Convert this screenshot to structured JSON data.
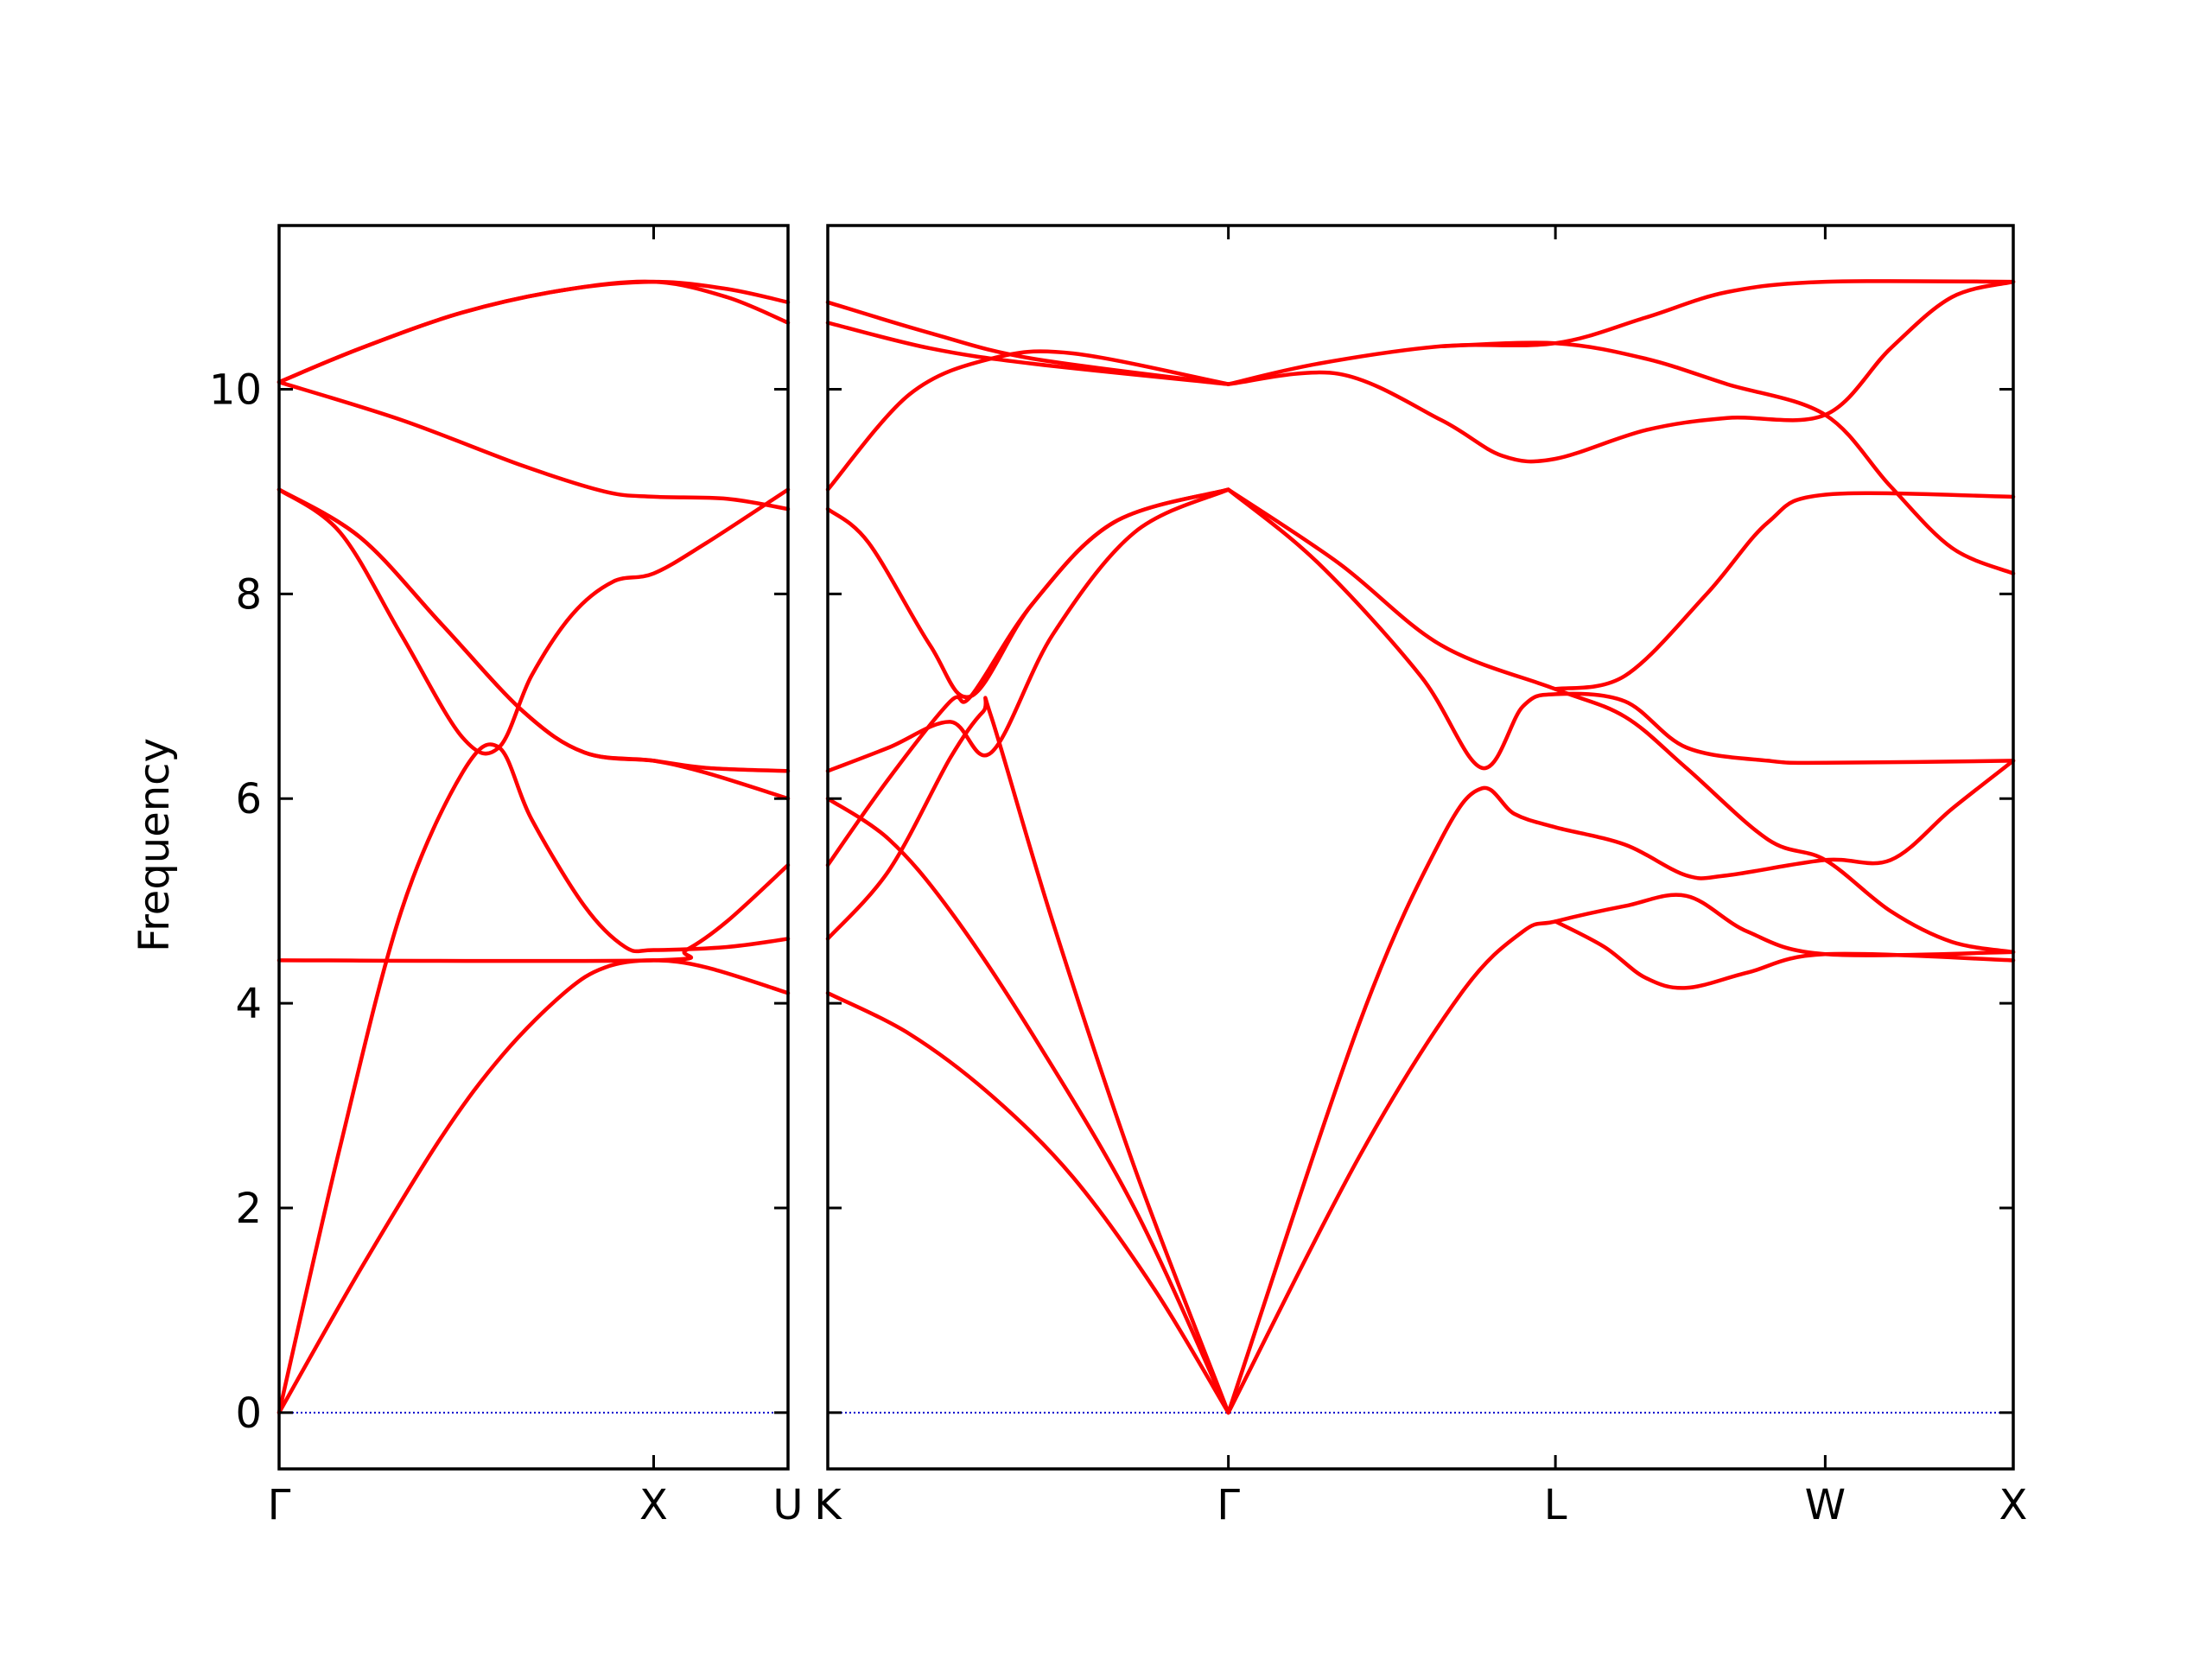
{
  "chart_data": {
    "type": "line",
    "ylabel": "Frequency",
    "ylim": [
      -0.55,
      11.6
    ],
    "yticks": [
      0,
      2,
      4,
      6,
      8,
      10
    ],
    "ytick_labels": [
      "0",
      "2",
      "4",
      "6",
      "8",
      "10"
    ],
    "zero_line": {
      "y": 0,
      "style": "dotted",
      "color": "#0000cc"
    },
    "line_color": "#ff0000",
    "panels": [
      {
        "xlim": [
          0,
          1.25
        ],
        "xticks": [
          0,
          0.92,
          1.25
        ],
        "xtick_labels": [
          "Γ",
          "X",
          "U"
        ],
        "series": [
          {
            "points": [
              [
                0,
                0
              ],
              [
                0.2,
                1.4
              ],
              [
                0.4,
                2.7
              ],
              [
                0.55,
                3.5
              ],
              [
                0.7,
                4.1
              ],
              [
                0.8,
                4.35
              ],
              [
                0.92,
                4.42
              ],
              [
                1.05,
                4.35
              ],
              [
                1.25,
                4.1
              ]
            ]
          },
          {
            "points": [
              [
                0,
                0
              ],
              [
                0.15,
                2.6
              ],
              [
                0.3,
                4.9
              ],
              [
                0.45,
                6.25
              ],
              [
                0.54,
                6.5
              ],
              [
                0.62,
                5.8
              ],
              [
                0.75,
                4.95
              ],
              [
                0.85,
                4.55
              ],
              [
                0.92,
                4.52
              ],
              [
                1.1,
                4.55
              ],
              [
                1.25,
                4.63
              ]
            ]
          },
          {
            "points": [
              [
                0,
                9.02
              ],
              [
                0.15,
                8.6
              ],
              [
                0.3,
                7.6
              ],
              [
                0.45,
                6.6
              ],
              [
                0.54,
                6.5
              ],
              [
                0.62,
                7.2
              ],
              [
                0.72,
                7.8
              ],
              [
                0.82,
                8.12
              ],
              [
                0.92,
                8.2
              ],
              [
                1.05,
                8.5
              ],
              [
                1.25,
                9.02
              ]
            ]
          },
          {
            "points": [
              [
                0,
                9.02
              ],
              [
                0.2,
                8.55
              ],
              [
                0.4,
                7.7
              ],
              [
                0.6,
                6.85
              ],
              [
                0.75,
                6.45
              ],
              [
                0.92,
                6.37
              ],
              [
                1.05,
                6.3
              ],
              [
                1.25,
                6.27
              ]
            ]
          },
          {
            "points": [
              [
                0,
                9.02
              ],
              [
                0.2,
                8.55
              ],
              [
                0.4,
                7.7
              ],
              [
                0.6,
                6.85
              ],
              [
                0.75,
                6.45
              ],
              [
                0.92,
                6.37
              ],
              [
                1.05,
                6.25
              ],
              [
                1.25,
                6.0
              ]
            ]
          },
          {
            "points": [
              [
                0,
                4.42
              ],
              [
                0.92,
                4.42
              ],
              [
                1.0,
                4.52
              ],
              [
                1.1,
                4.8
              ],
              [
                1.25,
                5.35
              ]
            ]
          },
          {
            "points": [
              [
                0,
                10.07
              ],
              [
                0.3,
                9.7
              ],
              [
                0.6,
                9.25
              ],
              [
                0.8,
                9.0
              ],
              [
                0.92,
                8.95
              ],
              [
                1.1,
                8.93
              ],
              [
                1.25,
                8.83
              ]
            ]
          },
          {
            "points": [
              [
                0,
                10.07
              ],
              [
                0.2,
                10.4
              ],
              [
                0.45,
                10.75
              ],
              [
                0.7,
                10.97
              ],
              [
                0.92,
                11.05
              ],
              [
                1.1,
                10.98
              ],
              [
                1.25,
                10.85
              ]
            ]
          },
          {
            "points": [
              [
                0,
                10.07
              ],
              [
                0.2,
                10.4
              ],
              [
                0.45,
                10.75
              ],
              [
                0.7,
                10.97
              ],
              [
                0.92,
                11.05
              ],
              [
                1.1,
                10.9
              ],
              [
                1.25,
                10.65
              ]
            ]
          }
        ]
      },
      {
        "xlim": [
          0,
          2.9
        ],
        "xticks": [
          0,
          0.98,
          1.78,
          2.44,
          2.9
        ],
        "xtick_labels": [
          "K",
          "Γ",
          "L",
          "W",
          "X"
        ],
        "series": [
          {
            "points": [
              [
                0,
                4.1
              ],
              [
                0.2,
                3.7
              ],
              [
                0.4,
                3.1
              ],
              [
                0.6,
                2.3
              ],
              [
                0.8,
                1.2
              ],
              [
                0.98,
                0
              ]
            ]
          },
          {
            "points": [
              [
                0,
                6.0
              ],
              [
                0.15,
                5.6
              ],
              [
                0.3,
                4.9
              ],
              [
                0.5,
                3.7
              ],
              [
                0.75,
                2.0
              ],
              [
                0.98,
                0
              ]
            ]
          },
          {
            "points": [
              [
                0,
                4.63
              ],
              [
                0.15,
                5.3
              ],
              [
                0.3,
                6.4
              ],
              [
                0.38,
                6.85
              ],
              [
                0.4,
                6.8
              ],
              [
                0.55,
                4.8
              ],
              [
                0.75,
                2.4
              ],
              [
                0.98,
                0
              ]
            ]
          },
          {
            "points": [
              [
                0,
                5.35
              ],
              [
                0.15,
                6.2
              ],
              [
                0.3,
                6.95
              ],
              [
                0.35,
                7.0
              ],
              [
                0.5,
                7.9
              ],
              [
                0.7,
                8.7
              ],
              [
                0.98,
                9.02
              ]
            ]
          },
          {
            "points": [
              [
                0,
                6.27
              ],
              [
                0.15,
                6.5
              ],
              [
                0.3,
                6.75
              ],
              [
                0.4,
                6.45
              ],
              [
                0.55,
                7.6
              ],
              [
                0.75,
                8.6
              ],
              [
                0.98,
                9.02
              ]
            ]
          },
          {
            "points": [
              [
                0,
                8.83
              ],
              [
                0.1,
                8.5
              ],
              [
                0.25,
                7.5
              ],
              [
                0.35,
                7.0
              ],
              [
                0.5,
                7.9
              ],
              [
                0.7,
                8.7
              ],
              [
                0.98,
                9.02
              ]
            ]
          },
          {
            "points": [
              [
                0,
                9.02
              ],
              [
                0.2,
                9.95
              ],
              [
                0.4,
                10.3
              ],
              [
                0.6,
                10.35
              ],
              [
                0.98,
                10.05
              ]
            ]
          },
          {
            "points": [
              [
                0,
                10.65
              ],
              [
                0.25,
                10.4
              ],
              [
                0.5,
                10.25
              ],
              [
                0.98,
                10.05
              ]
            ]
          },
          {
            "points": [
              [
                0,
                10.85
              ],
              [
                0.25,
                10.55
              ],
              [
                0.5,
                10.3
              ],
              [
                0.98,
                10.05
              ]
            ]
          },
          {
            "points": [
              [
                0.98,
                0
              ],
              [
                1.3,
                3.8
              ],
              [
                1.5,
                5.6
              ],
              [
                1.6,
                6.1
              ],
              [
                1.68,
                5.85
              ],
              [
                1.78,
                5.72
              ],
              [
                1.95,
                5.55
              ],
              [
                2.1,
                5.25
              ],
              [
                2.2,
                5.25
              ],
              [
                2.44,
                5.4
              ],
              [
                2.6,
                5.4
              ],
              [
                2.75,
                5.9
              ],
              [
                2.9,
                6.37
              ]
            ]
          },
          {
            "points": [
              [
                0.98,
                0
              ],
              [
                1.3,
                2.5
              ],
              [
                1.55,
                4.1
              ],
              [
                1.7,
                4.7
              ],
              [
                1.78,
                4.8
              ],
              [
                1.95,
                4.95
              ],
              [
                2.1,
                5.05
              ],
              [
                2.25,
                4.7
              ],
              [
                2.44,
                4.48
              ],
              [
                2.9,
                4.5
              ]
            ]
          },
          {
            "points": [
              [
                1.78,
                4.8
              ],
              [
                1.9,
                4.55
              ],
              [
                2.0,
                4.25
              ],
              [
                2.1,
                4.15
              ],
              [
                2.25,
                4.3
              ],
              [
                2.44,
                4.48
              ],
              [
                2.9,
                4.42
              ]
            ]
          },
          {
            "points": [
              [
                0.98,
                9.02
              ],
              [
                1.2,
                8.3
              ],
              [
                1.45,
                7.2
              ],
              [
                1.6,
                6.3
              ],
              [
                1.7,
                6.9
              ],
              [
                1.78,
                7.02
              ],
              [
                1.95,
                6.95
              ],
              [
                2.1,
                6.5
              ],
              [
                2.3,
                6.37
              ],
              [
                2.44,
                6.35
              ],
              [
                2.9,
                6.37
              ]
            ]
          },
          {
            "points": [
              [
                0.98,
                9.02
              ],
              [
                1.25,
                8.3
              ],
              [
                1.5,
                7.5
              ],
              [
                1.78,
                7.07
              ],
              [
                1.95,
                6.8
              ],
              [
                2.1,
                6.3
              ],
              [
                2.3,
                5.6
              ],
              [
                2.44,
                5.4
              ],
              [
                2.6,
                4.9
              ],
              [
                2.75,
                4.6
              ],
              [
                2.9,
                4.5
              ]
            ]
          },
          {
            "points": [
              [
                0.98,
                10.05
              ],
              [
                1.2,
                10.25
              ],
              [
                1.5,
                10.42
              ],
              [
                1.78,
                10.45
              ],
              [
                2.0,
                10.7
              ],
              [
                2.2,
                10.95
              ],
              [
                2.44,
                11.05
              ],
              [
                2.9,
                11.05
              ]
            ]
          },
          {
            "points": [
              [
                0.98,
                10.05
              ],
              [
                1.25,
                10.15
              ],
              [
                1.5,
                9.7
              ],
              [
                1.65,
                9.35
              ],
              [
                1.78,
                9.32
              ],
              [
                2.0,
                9.6
              ],
              [
                2.2,
                9.72
              ],
              [
                2.44,
                9.75
              ],
              [
                2.6,
                10.4
              ],
              [
                2.75,
                10.9
              ],
              [
                2.9,
                11.05
              ]
            ]
          },
          {
            "points": [
              [
                1.5,
                10.42
              ],
              [
                1.78,
                10.45
              ],
              [
                2.0,
                10.3
              ],
              [
                2.2,
                10.05
              ],
              [
                2.44,
                9.75
              ],
              [
                2.6,
                9.05
              ],
              [
                2.75,
                8.45
              ],
              [
                2.9,
                8.2
              ]
            ]
          },
          {
            "points": [
              [
                1.78,
                7.07
              ],
              [
                1.95,
                7.2
              ],
              [
                2.15,
                8.0
              ],
              [
                2.3,
                8.7
              ],
              [
                2.44,
                8.97
              ],
              [
                2.9,
                8.95
              ]
            ]
          }
        ]
      }
    ]
  }
}
